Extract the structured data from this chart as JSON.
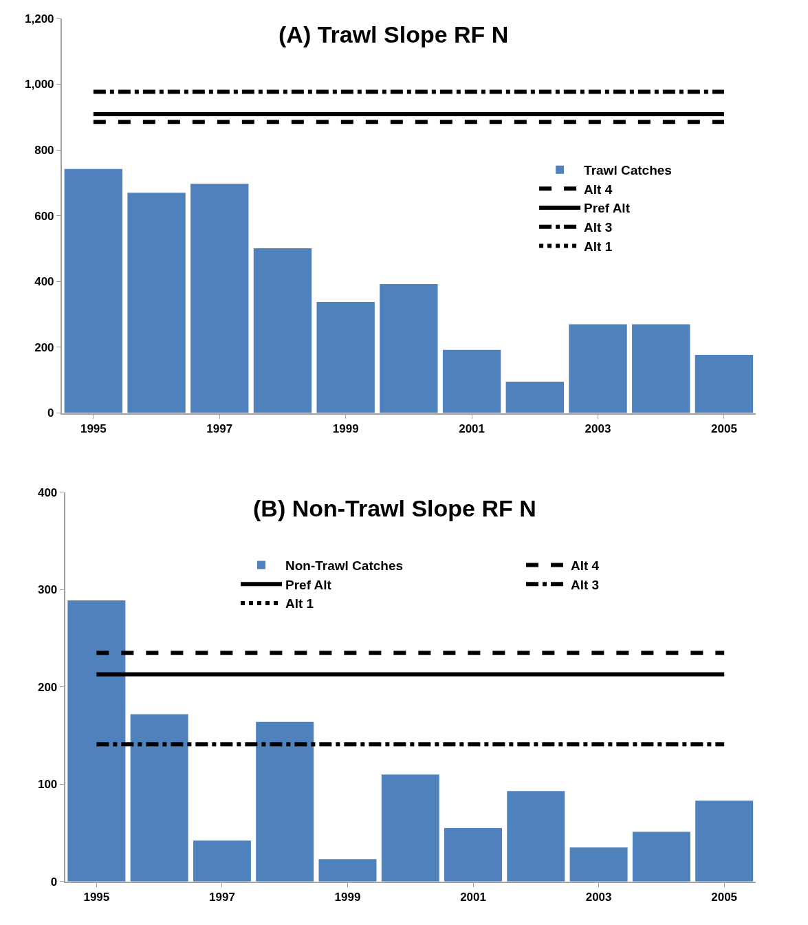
{
  "chart_data": [
    {
      "type": "bar",
      "title": "(A) Trawl Slope RF N",
      "categories": [
        "1995",
        null,
        "1997",
        null,
        "1999",
        null,
        "2001",
        null,
        "2003",
        null,
        "2005"
      ],
      "ylim": [
        0,
        1200
      ],
      "yticks": [
        0,
        200,
        400,
        600,
        800,
        {
          "value": 1000,
          "label": "1,000"
        },
        {
          "value": 1200,
          "label": "1,200"
        }
      ],
      "legend": "right",
      "series": [
        {
          "name": "Trawl Catches",
          "color": "#4f81bd",
          "values": [
            742,
            670,
            697,
            501,
            338,
            392,
            192,
            95,
            270,
            270,
            177
          ]
        },
        {
          "name": "Alt 4",
          "type": "line",
          "color": "#000000",
          "line_style": "dashed",
          "values": [
            885,
            885,
            885,
            885,
            885,
            885,
            885,
            885,
            885,
            885,
            885
          ]
        },
        {
          "name": "Pref Alt",
          "type": "line",
          "color": "#000000",
          "line_style": "solid",
          "values": [
            909,
            909,
            909,
            909,
            909,
            909,
            909,
            909,
            909,
            909,
            909
          ]
        },
        {
          "name": "Alt 3",
          "type": "line",
          "color": "#000000",
          "line_style": "dashdot",
          "values": [
            977,
            977,
            977,
            977,
            977,
            977,
            977,
            977,
            977,
            977,
            977
          ]
        },
        {
          "name": "Alt 1",
          "type": "line",
          "color": "#000000",
          "line_style": "dotted",
          "values": [
            null,
            null,
            null,
            null,
            null,
            null,
            null,
            null,
            null,
            null,
            null
          ]
        }
      ]
    },
    {
      "type": "bar",
      "title": "(B) Non-Trawl Slope RF N",
      "categories": [
        "1995",
        null,
        "1997",
        null,
        "1999",
        null,
        "2001",
        null,
        "2003",
        null,
        "2005"
      ],
      "ylim": [
        0,
        400
      ],
      "yticks": [
        0,
        100,
        200,
        300,
        400
      ],
      "legend": "top",
      "series": [
        {
          "name": "Non-Trawl Catches",
          "color": "#4f81bd",
          "values": [
            289,
            172,
            42,
            164,
            23,
            110,
            55,
            93,
            35,
            51,
            83
          ]
        },
        {
          "name": "Alt 4",
          "type": "line",
          "color": "#000000",
          "line_style": "dashed",
          "values": [
            235,
            235,
            235,
            235,
            235,
            235,
            235,
            235,
            235,
            235,
            235
          ]
        },
        {
          "name": "Pref Alt",
          "type": "line",
          "color": "#000000",
          "line_style": "solid",
          "values": [
            213,
            213,
            213,
            213,
            213,
            213,
            213,
            213,
            213,
            213,
            213
          ]
        },
        {
          "name": "Alt 3",
          "type": "line",
          "color": "#000000",
          "line_style": "dashdot",
          "values": [
            141,
            141,
            141,
            141,
            141,
            141,
            141,
            141,
            141,
            141,
            141
          ]
        },
        {
          "name": "Alt 1",
          "type": "line",
          "color": "#000000",
          "line_style": "dotted",
          "values": [
            null,
            null,
            null,
            null,
            null,
            null,
            null,
            null,
            null,
            null,
            null
          ]
        }
      ]
    }
  ]
}
